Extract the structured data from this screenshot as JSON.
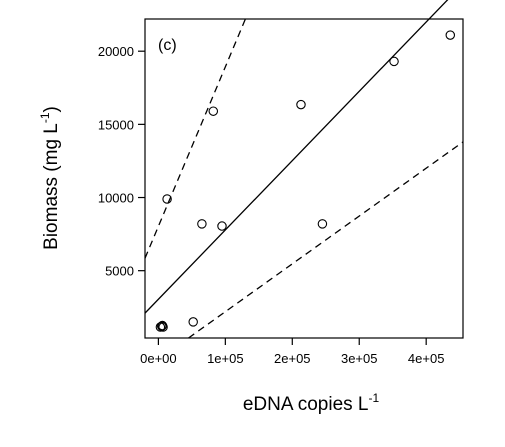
{
  "chart_data": {
    "type": "scatter",
    "title": "",
    "panel_label": "(c)",
    "xlabel_main": "eDNA copies L",
    "xlabel_sup": "-1",
    "ylabel_main": "Biomass (mg L",
    "ylabel_sup": "-1",
    "ylabel_close": ")",
    "xlim": [
      -20000,
      455000
    ],
    "ylim": [
      400,
      22200
    ],
    "x_ticks": [
      0,
      100000,
      200000,
      300000,
      400000
    ],
    "x_tick_labels": [
      "0e+00",
      "1e+05",
      "2e+05",
      "3e+05",
      "4e+05"
    ],
    "y_ticks": [
      5000,
      10000,
      15000,
      20000
    ],
    "y_tick_labels": [
      "5000",
      "10000",
      "15000",
      "20000"
    ],
    "grid": false,
    "points": [
      {
        "x": 3000,
        "y": 1150
      },
      {
        "x": 5000,
        "y": 1200
      },
      {
        "x": 7000,
        "y": 1150
      },
      {
        "x": 6000,
        "y": 1250
      },
      {
        "x": 13000,
        "y": 9900
      },
      {
        "x": 52000,
        "y": 1500
      },
      {
        "x": 65000,
        "y": 8200
      },
      {
        "x": 82000,
        "y": 15900
      },
      {
        "x": 95000,
        "y": 8050
      },
      {
        "x": 213000,
        "y": 16350
      },
      {
        "x": 245000,
        "y": 8200
      },
      {
        "x": 352000,
        "y": 19300
      },
      {
        "x": 436000,
        "y": 21100
      }
    ],
    "fit_line": {
      "x": [
        -20000,
        455000
      ],
      "y": [
        2100,
        24600
      ]
    },
    "upper_ci": {
      "x": [
        -20000,
        130000
      ],
      "y": [
        5850,
        22200
      ]
    },
    "lower_ci": {
      "x": [
        45000,
        455000
      ],
      "y": [
        400,
        13800
      ]
    }
  }
}
